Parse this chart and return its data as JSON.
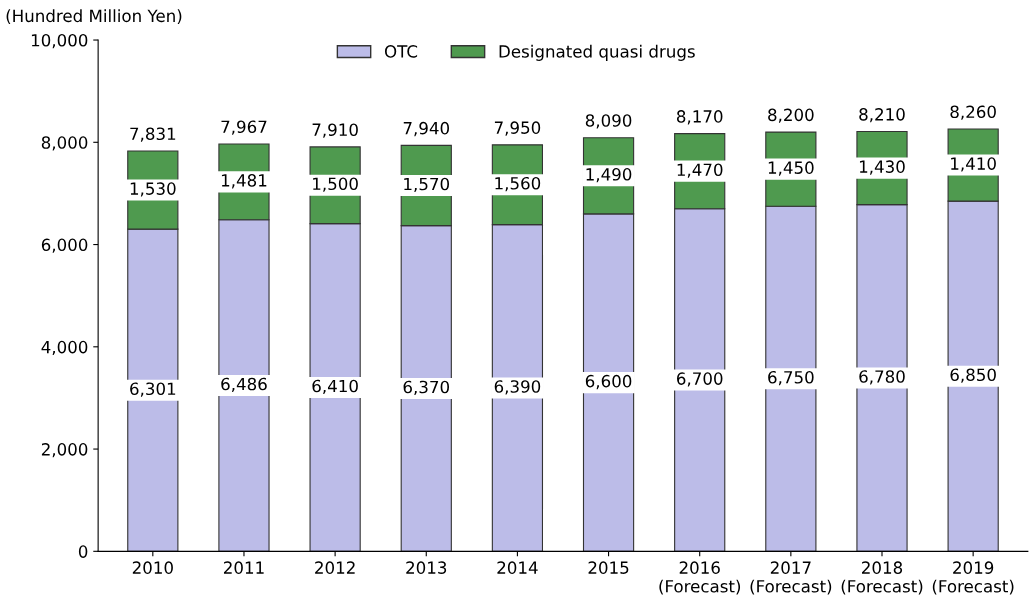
{
  "chart_data": {
    "type": "bar",
    "stacked": true,
    "ylabel": "(Hundred Million Yen)",
    "categories": [
      "2010",
      "2011",
      "2012",
      "2013",
      "2014",
      "2015",
      "2016\n(Forecast)",
      "2017\n(Forecast)",
      "2018\n(Forecast)",
      "2019\n(Forecast)"
    ],
    "series": [
      {
        "name": "OTC",
        "color": "#bcbce8",
        "values": [
          6301,
          6486,
          6410,
          6370,
          6390,
          6600,
          6700,
          6750,
          6780,
          6850
        ],
        "value_labels": [
          "6,301",
          "6,486",
          "6,410",
          "6,370",
          "6,390",
          "6,600",
          "6,700",
          "6,750",
          "6,780",
          "6,850"
        ]
      },
      {
        "name": "Designated quasi drugs",
        "color": "#4f9a4f",
        "values": [
          1530,
          1481,
          1500,
          1570,
          1560,
          1490,
          1470,
          1450,
          1430,
          1410
        ],
        "value_labels": [
          "1,530",
          "1,481",
          "1,500",
          "1,570",
          "1,560",
          "1,490",
          "1,470",
          "1,450",
          "1,430",
          "1,410"
        ]
      }
    ],
    "totals": [
      "7,831",
      "7,967",
      "7,910",
      "7,940",
      "7,950",
      "8,090",
      "8,170",
      "8,200",
      "8,210",
      "8,260"
    ],
    "ylim": [
      0,
      10000
    ],
    "yticks": [
      0,
      {
        "value": 2000,
        "label": "2,000"
      },
      {
        "value": 4000,
        "label": "4,000"
      },
      {
        "value": 6000,
        "label": "6,000"
      },
      {
        "value": 8000,
        "label": "8,000"
      },
      {
        "value": 10000,
        "label": "10,000"
      }
    ],
    "grid": false,
    "legend": "top"
  }
}
